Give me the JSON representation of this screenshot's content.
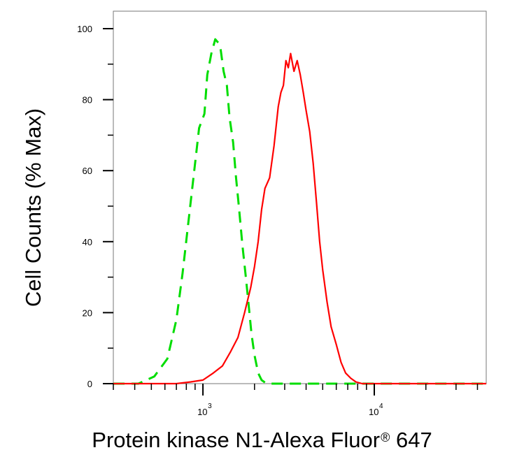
{
  "chart_data": {
    "type": "line",
    "ylabel": "Cell Counts (% Max)",
    "xlabel": "Protein kinase N1-Alexa Fluor",
    "xlabel_superscript": "®",
    "xlabel_suffix": "647",
    "x_scale": "log",
    "xlim": [
      300,
      45000
    ],
    "ylim": [
      0,
      105
    ],
    "y_ticks": [
      0,
      20,
      40,
      60,
      80,
      100
    ],
    "x_major_ticks": [
      {
        "value": 1000,
        "base": "10",
        "exp": "3"
      },
      {
        "value": 10000,
        "base": "10",
        "exp": "4"
      }
    ],
    "grid": false,
    "series": [
      {
        "color": "#00dd00",
        "style": "dashed",
        "x": [
          300,
          350,
          420,
          520,
          620,
          700,
          760,
          820,
          880,
          950,
          1020,
          1060,
          1120,
          1180,
          1230,
          1270,
          1320,
          1380,
          1430,
          1500,
          1560,
          1620,
          1700,
          1780,
          1850,
          1920,
          2000,
          2100,
          2200,
          2350,
          2500,
          2700,
          3000,
          4000,
          10000,
          20000,
          45000
        ],
        "y": [
          0,
          0,
          0,
          2,
          7,
          18,
          31,
          45,
          58,
          72,
          76,
          87,
          93,
          97,
          96,
          94,
          88,
          84,
          75,
          68,
          58,
          50,
          39,
          30,
          22,
          14,
          8,
          3,
          1,
          0,
          0,
          0,
          0,
          0,
          0,
          0,
          0
        ]
      },
      {
        "color": "#ff0000",
        "style": "solid",
        "x": [
          300,
          500,
          700,
          850,
          1000,
          1150,
          1300,
          1450,
          1600,
          1750,
          1900,
          2000,
          2100,
          2200,
          2300,
          2450,
          2600,
          2750,
          2850,
          2950,
          3050,
          3150,
          3250,
          3400,
          3550,
          3700,
          3850,
          4000,
          4200,
          4400,
          4600,
          4800,
          5000,
          5300,
          5600,
          6000,
          6400,
          6800,
          7300,
          7800,
          8500,
          9200,
          10000,
          15000,
          25000,
          45000
        ],
        "y": [
          0,
          0,
          0,
          0.5,
          1,
          3,
          5,
          9,
          13,
          20,
          27,
          33,
          40,
          49,
          55,
          58,
          67,
          78,
          82,
          84,
          91,
          89,
          93,
          88,
          91,
          87,
          82,
          77,
          71,
          62,
          51,
          40,
          32,
          23,
          16,
          11,
          6,
          3,
          1.5,
          0.5,
          0,
          0,
          0,
          0,
          0,
          0
        ]
      }
    ]
  }
}
